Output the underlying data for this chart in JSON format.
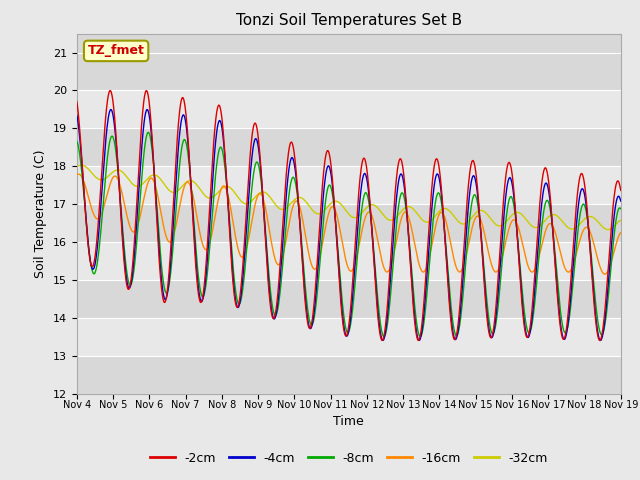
{
  "title": "Tonzi Soil Temperatures Set B",
  "xlabel": "Time",
  "ylabel": "Soil Temperature (C)",
  "ylim": [
    12.0,
    21.5
  ],
  "yticks": [
    12.0,
    13.0,
    14.0,
    15.0,
    16.0,
    17.0,
    18.0,
    19.0,
    20.0,
    21.0
  ],
  "fig_facecolor": "#e8e8e8",
  "plot_bg_color": "#d8d8d8",
  "annotation_text": "TZ_fmet",
  "annotation_color": "#cc0000",
  "annotation_bg": "#ffffcc",
  "annotation_border": "#999900",
  "series_colors": {
    "-2cm": "#dd0000",
    "-4cm": "#0000cc",
    "-8cm": "#00aa00",
    "-16cm": "#ff8800",
    "-32cm": "#cccc00"
  },
  "series_linewidth": 1.0,
  "x_tick_days": [
    4,
    5,
    6,
    7,
    8,
    9,
    10,
    11,
    12,
    13,
    14,
    15,
    16,
    17,
    18,
    19
  ],
  "x_tick_labels": [
    "Nov 4",
    "Nov 5",
    "Nov 6",
    "Nov 7",
    "Nov 8",
    "Nov 9",
    "Nov 10",
    "Nov 11",
    "Nov 12",
    "Nov 13",
    "Nov 14",
    "Nov 15",
    "Nov 16",
    "Nov 17",
    "Nov 18",
    "Nov 19"
  ],
  "legend_labels": [
    "-2cm",
    "-4cm",
    "-8cm",
    "-16cm",
    "-32cm"
  ],
  "legend_colors": [
    "#dd0000",
    "#0000cc",
    "#00aa00",
    "#ff8800",
    "#cccc00"
  ],
  "grid_band_colors": [
    "#d8d8d8",
    "#e8e8e8"
  ]
}
